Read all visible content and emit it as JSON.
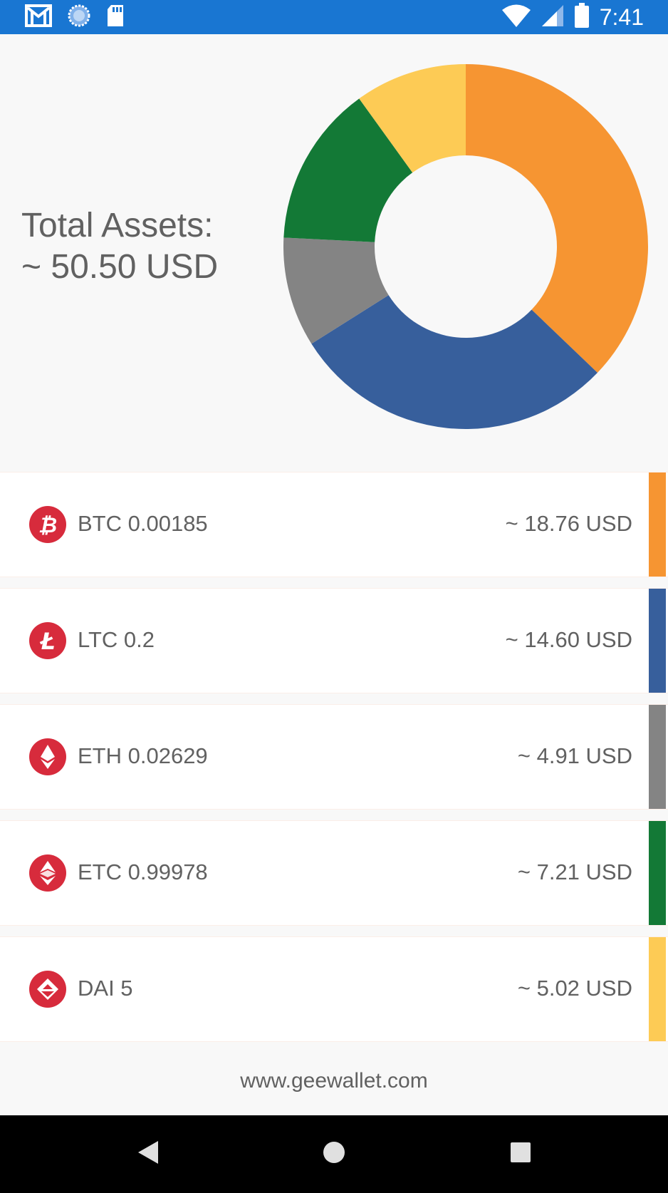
{
  "status_bar": {
    "time": "7:41",
    "left_icons": [
      "gmail-icon",
      "sync-icon",
      "sd-card-icon"
    ],
    "right_icons": [
      "wifi-icon",
      "cell-signal-icon",
      "battery-icon"
    ],
    "background": "#1976d2"
  },
  "summary": {
    "total_label": "Total Assets:",
    "total_value": "~ 50.50 USD"
  },
  "chart_data": {
    "type": "pie",
    "donut": true,
    "categories": [
      "BTC",
      "LTC",
      "ETH",
      "ETC",
      "DAI"
    ],
    "values": [
      18.76,
      14.6,
      4.91,
      7.21,
      5.02
    ],
    "colors": [
      "#f69532",
      "#375f9c",
      "#848484",
      "#137936",
      "#fdcb55"
    ]
  },
  "assets": [
    {
      "icon": "bitcoin-icon",
      "label": "BTC 0.00185",
      "usd": "~ 18.76 USD",
      "color": "#f69532"
    },
    {
      "icon": "litecoin-icon",
      "label": "LTC 0.2",
      "usd": "~ 14.60 USD",
      "color": "#375f9c"
    },
    {
      "icon": "ethereum-icon",
      "label": "ETH 0.02629",
      "usd": "~ 4.91 USD",
      "color": "#848484"
    },
    {
      "icon": "ethereum-classic-icon",
      "label": "ETC 0.99978",
      "usd": "~ 7.21 USD",
      "color": "#137936"
    },
    {
      "icon": "dai-icon",
      "label": "DAI 5",
      "usd": "~ 5.02 USD",
      "color": "#fdcb55"
    }
  ],
  "footer": {
    "link": "www.geewallet.com"
  },
  "nav_bar": {
    "buttons": [
      "back-icon",
      "home-icon",
      "recents-icon"
    ]
  }
}
